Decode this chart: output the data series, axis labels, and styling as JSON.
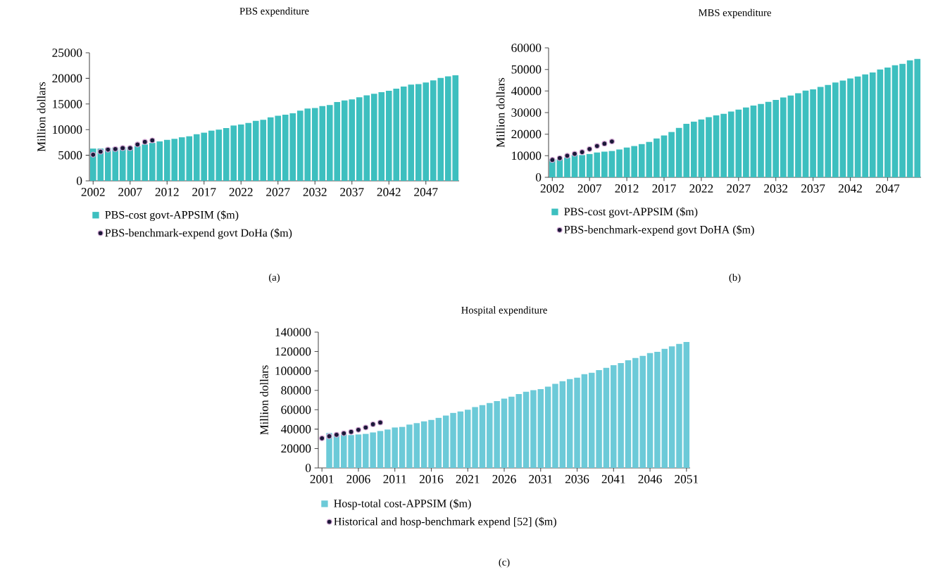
{
  "chart_data": [
    {
      "type": "bar",
      "title": "PBS expenditure",
      "ylabel": "Million dollars",
      "x": [
        2002,
        2003,
        2004,
        2005,
        2006,
        2007,
        2008,
        2009,
        2010,
        2011,
        2012,
        2013,
        2014,
        2015,
        2016,
        2017,
        2018,
        2019,
        2020,
        2021,
        2022,
        2023,
        2024,
        2025,
        2026,
        2027,
        2028,
        2029,
        2030,
        2031,
        2032,
        2033,
        2034,
        2035,
        2036,
        2037,
        2038,
        2039,
        2040,
        2041,
        2042,
        2043,
        2044,
        2045,
        2046,
        2047,
        2048,
        2049,
        2050,
        2051
      ],
      "series": [
        {
          "name": "PBS-cost govt-APPSIM ($m)",
          "color": "#3dbfbf",
          "values": [
            6300,
            6300,
            6400,
            6500,
            6600,
            6600,
            6800,
            7100,
            7400,
            7700,
            8000,
            8200,
            8500,
            8700,
            9100,
            9400,
            9800,
            10000,
            10300,
            10800,
            11000,
            11300,
            11700,
            11900,
            12400,
            12700,
            12900,
            13200,
            13700,
            14100,
            14200,
            14600,
            14800,
            15400,
            15700,
            15900,
            16300,
            16700,
            17000,
            17300,
            17600,
            18000,
            18400,
            18800,
            18900,
            19200,
            19600,
            20100,
            20400,
            20600
          ]
        },
        {
          "name": "PBS-benchmark-expend govt DoHa ($m)",
          "type": "scatter",
          "marker": "circle",
          "color": "#1b1838",
          "x": [
            2002,
            2003,
            2004,
            2005,
            2006,
            2007,
            2008,
            2009,
            2010
          ],
          "values": [
            5100,
            5700,
            6100,
            6200,
            6400,
            6400,
            7100,
            7600,
            7900
          ]
        }
      ],
      "xlim": [
        2001.5,
        2051.5
      ],
      "xticks": [
        2002,
        2007,
        2012,
        2017,
        2022,
        2027,
        2032,
        2037,
        2042,
        2047
      ],
      "ylim": [
        0,
        25000
      ],
      "yticks": [
        0,
        5000,
        10000,
        15000,
        20000,
        25000
      ],
      "legend": "bottom",
      "annotations": [
        "(a)"
      ]
    },
    {
      "type": "bar",
      "title": "MBS expenditure",
      "ylabel": "Million dollars",
      "x": [
        2002,
        2003,
        2004,
        2005,
        2006,
        2007,
        2008,
        2009,
        2010,
        2011,
        2012,
        2013,
        2014,
        2015,
        2016,
        2017,
        2018,
        2019,
        2020,
        2021,
        2022,
        2023,
        2024,
        2025,
        2026,
        2027,
        2028,
        2029,
        2030,
        2031,
        2032,
        2033,
        2034,
        2035,
        2036,
        2037,
        2038,
        2039,
        2040,
        2041,
        2042,
        2043,
        2044,
        2045,
        2046,
        2047,
        2048,
        2049,
        2050,
        2051
      ],
      "series": [
        {
          "name": "PBS-cost govt-APPSIM ($m)",
          "color": "#3dbfbf",
          "values": [
            8400,
            8400,
            9200,
            10400,
            10300,
            10800,
            11500,
            11900,
            12200,
            12900,
            13800,
            14500,
            15400,
            16400,
            18000,
            19400,
            21000,
            22900,
            24800,
            25800,
            26800,
            27900,
            28700,
            29400,
            30500,
            31400,
            32400,
            33300,
            34000,
            35000,
            35900,
            37000,
            37900,
            39000,
            40200,
            40800,
            41900,
            42800,
            43900,
            44800,
            45800,
            46700,
            47700,
            48600,
            50000,
            50900,
            51900,
            52600,
            54200,
            54900
          ]
        },
        {
          "name": "PBS-benchmark-expend govt DoHA ($m)",
          "type": "scatter",
          "marker": "circle",
          "color": "#1b1838",
          "x": [
            2002,
            2003,
            2004,
            2005,
            2006,
            2007,
            2008,
            2009,
            2010
          ],
          "values": [
            8100,
            8900,
            10000,
            10900,
            11700,
            13100,
            14500,
            15600,
            16600
          ]
        }
      ],
      "xlim": [
        2001.5,
        2051.5
      ],
      "xticks": [
        2002,
        2007,
        2012,
        2017,
        2022,
        2027,
        2032,
        2037,
        2042,
        2047
      ],
      "ylim": [
        0,
        60000
      ],
      "yticks": [
        0,
        10000,
        20000,
        30000,
        40000,
        50000,
        60000
      ],
      "legend": "bottom",
      "annotations": [
        "(b)"
      ]
    },
    {
      "type": "bar",
      "title": "Hospital expenditure",
      "ylabel": "Million dollars",
      "x": [
        2002,
        2003,
        2004,
        2005,
        2006,
        2007,
        2008,
        2009,
        2010,
        2011,
        2012,
        2013,
        2014,
        2015,
        2016,
        2017,
        2018,
        2019,
        2020,
        2021,
        2022,
        2023,
        2024,
        2025,
        2026,
        2027,
        2028,
        2029,
        2030,
        2031,
        2032,
        2033,
        2034,
        2035,
        2036,
        2037,
        2038,
        2039,
        2040,
        2041,
        2042,
        2043,
        2044,
        2045,
        2046,
        2047,
        2048,
        2049,
        2050,
        2051
      ],
      "series": [
        {
          "name": "Hosp-total cost-APPSIM ($m)",
          "color": "#6ccad8",
          "values": [
            36000,
            34800,
            34500,
            33900,
            34500,
            35100,
            36600,
            38100,
            39600,
            41700,
            42300,
            44700,
            46200,
            48000,
            49500,
            51600,
            54000,
            56700,
            58200,
            60000,
            62700,
            64800,
            66900,
            69000,
            71400,
            73500,
            76200,
            78600,
            80100,
            81300,
            83700,
            86700,
            89400,
            91500,
            93000,
            96600,
            98100,
            100800,
            103200,
            105900,
            108000,
            111000,
            113400,
            115500,
            118500,
            119700,
            122700,
            125400,
            127800,
            129900
          ]
        },
        {
          "name": "Historical and hosp-benchmark expend [52] ($m)",
          "type": "scatter",
          "marker": "circle",
          "color": "#1b1838",
          "x": [
            2001,
            2002,
            2003,
            2004,
            2005,
            2006,
            2007,
            2008,
            2009
          ],
          "values": [
            30600,
            32700,
            34200,
            35700,
            37200,
            39300,
            41700,
            45000,
            46800
          ]
        }
      ],
      "xlim": [
        2000.5,
        2051.5
      ],
      "xticks": [
        2001,
        2006,
        2011,
        2016,
        2021,
        2026,
        2031,
        2036,
        2041,
        2046,
        2051
      ],
      "ylim": [
        0,
        140000
      ],
      "yticks": [
        0,
        20000,
        40000,
        60000,
        80000,
        100000,
        120000,
        140000
      ],
      "legend": "bottom",
      "annotations": [
        "(c)"
      ]
    }
  ]
}
